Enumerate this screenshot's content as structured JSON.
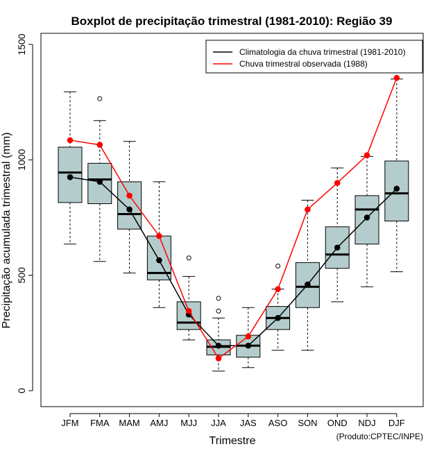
{
  "chart_data": {
    "type": "boxplot",
    "title": "Boxplot de precipitação trimestral (1981-2010): Região 39",
    "xlabel": "Trimestre",
    "ylabel": "Precipitação acumulada trimestral (mm)",
    "credit": "(Produto:CPTEC/INPE)",
    "ylim": [
      -70,
      1500
    ],
    "yticks": [
      0,
      500,
      1000,
      1500
    ],
    "ytick_labels": [
      "0",
      "500",
      "1000",
      "1500"
    ],
    "categories": [
      "JFM",
      "FMA",
      "MAM",
      "AMJ",
      "MJJ",
      "JJA",
      "JAS",
      "ASO",
      "SON",
      "OND",
      "NDJ",
      "DJF"
    ],
    "boxes": [
      {
        "whisker_low": 635,
        "q1": 815,
        "median": 945,
        "q3": 1055,
        "whisker_high": 1295,
        "outliers": []
      },
      {
        "whisker_low": 560,
        "q1": 810,
        "median": 915,
        "q3": 985,
        "whisker_high": 1170,
        "outliers": [
          1265
        ]
      },
      {
        "whisker_low": 510,
        "q1": 700,
        "median": 765,
        "q3": 905,
        "whisker_high": 1080,
        "outliers": []
      },
      {
        "whisker_low": 360,
        "q1": 480,
        "median": 510,
        "q3": 670,
        "whisker_high": 905,
        "outliers": []
      },
      {
        "whisker_low": 220,
        "q1": 265,
        "median": 295,
        "q3": 385,
        "whisker_high": 495,
        "outliers": [
          575
        ]
      },
      {
        "whisker_low": 85,
        "q1": 155,
        "median": 190,
        "q3": 220,
        "whisker_high": 315,
        "outliers": [
          400,
          345
        ]
      },
      {
        "whisker_low": 100,
        "q1": 145,
        "median": 195,
        "q3": 240,
        "whisker_high": 360,
        "outliers": []
      },
      {
        "whisker_low": 175,
        "q1": 265,
        "median": 315,
        "q3": 365,
        "whisker_high": 440,
        "outliers": [
          540
        ]
      },
      {
        "whisker_low": 175,
        "q1": 360,
        "median": 450,
        "q3": 555,
        "whisker_high": 825,
        "outliers": []
      },
      {
        "whisker_low": 385,
        "q1": 530,
        "median": 590,
        "q3": 710,
        "whisker_high": 965,
        "outliers": []
      },
      {
        "whisker_low": 450,
        "q1": 635,
        "median": 785,
        "q3": 845,
        "whisker_high": 1015,
        "outliers": []
      },
      {
        "whisker_low": 515,
        "q1": 735,
        "median": 855,
        "q3": 995,
        "whisker_high": 1350,
        "outliers": []
      }
    ],
    "series": [
      {
        "name": "Climatologia da chuva trimestral (1981-2010)",
        "color": "#000000",
        "values": [
          925,
          905,
          785,
          565,
          330,
          195,
          195,
          315,
          460,
          620,
          750,
          875
        ]
      },
      {
        "name": "Chuva trimestral observada (1988)",
        "color": "#ff0000",
        "values": [
          1085,
          1065,
          845,
          670,
          345,
          140,
          235,
          440,
          785,
          900,
          1020,
          1355
        ]
      }
    ],
    "box_fill": "#b4cccc",
    "legend_position": "top-right"
  }
}
